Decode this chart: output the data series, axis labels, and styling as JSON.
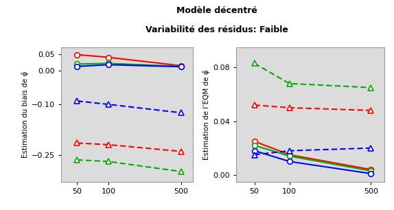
{
  "title_line1": "Modèle décentré",
  "title_line2": "Variabilité des résidus: Faible",
  "x": [
    50,
    100,
    500
  ],
  "left_ylabel": "Estimation du biais de φ̂",
  "right_ylabel": "Estimation de l’EQM de φ̂",
  "left_ylim": [
    -0.33,
    0.07
  ],
  "right_ylim": [
    -0.005,
    0.095
  ],
  "left_yticks": [
    0.05,
    0.0,
    -0.1,
    -0.25
  ],
  "right_yticks": [
    0.0,
    0.04,
    0.08
  ],
  "left_solid_circle": {
    "red": [
      0.048,
      0.04,
      0.015
    ],
    "green": [
      0.02,
      0.022,
      0.013
    ],
    "blue": [
      0.013,
      0.018,
      0.012
    ]
  },
  "left_dashed_triangle": {
    "blue": [
      -0.09,
      -0.1,
      -0.125
    ],
    "red": [
      -0.215,
      -0.22,
      -0.24
    ],
    "green": [
      -0.265,
      -0.27,
      -0.3
    ]
  },
  "right_solid_circle": {
    "red": [
      0.025,
      0.015,
      0.004
    ],
    "green": [
      0.022,
      0.014,
      0.003
    ],
    "blue": [
      0.018,
      0.01,
      0.001
    ]
  },
  "right_dashed_triangle": {
    "blue": [
      0.015,
      0.018,
      0.02
    ],
    "red": [
      0.052,
      0.05,
      0.048
    ],
    "green": [
      0.083,
      0.068,
      0.065
    ]
  },
  "colors": {
    "red": "#FF0000",
    "green": "#00AA00",
    "blue": "#0000FF"
  },
  "bg_color": "#DCDCDC",
  "xlim": [
    35,
    650
  ]
}
